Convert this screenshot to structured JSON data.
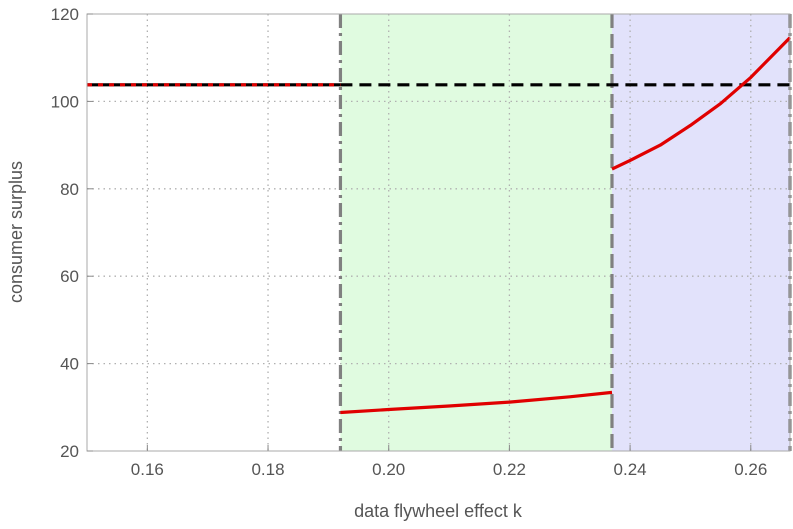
{
  "chart_data": {
    "type": "line",
    "title": "",
    "xlabel": "data flywheel effect k",
    "ylabel": "consumer surplus",
    "xlim": [
      0.15,
      0.2665
    ],
    "ylim": [
      20,
      120
    ],
    "xticks": [
      0.16,
      0.18,
      0.2,
      0.22,
      0.24,
      0.26
    ],
    "xtick_labels": [
      "0.16",
      "0.18",
      "0.20",
      "0.22",
      "0.24",
      "0.26"
    ],
    "yticks": [
      20,
      40,
      60,
      80,
      100,
      120
    ],
    "ytick_labels": [
      "20",
      "40",
      "60",
      "80",
      "100",
      "120"
    ],
    "grid": true,
    "legend": "none",
    "regions": [
      {
        "x_start": 0.192,
        "x_end": 0.237,
        "color": "#e0fbe0"
      },
      {
        "x_start": 0.237,
        "x_end": 0.2665,
        "color": "#e2e2fb"
      }
    ],
    "vertical_lines": [
      {
        "x": 0.192,
        "style": "dash-dot",
        "color": "#808080"
      },
      {
        "x": 0.237,
        "style": "dashed",
        "color": "#808080"
      },
      {
        "x": 0.2665,
        "style": "dash-dot",
        "color": "#808080"
      }
    ],
    "series": [
      {
        "color": "#000000",
        "style": "solid-then-dashed",
        "segments": [
          {
            "style": "solid",
            "points": [
              [
                0.15,
                103.8
              ],
              [
                0.192,
                103.8
              ]
            ]
          },
          {
            "style": "dashed",
            "points": [
              [
                0.192,
                103.8
              ],
              [
                0.2665,
                103.8
              ]
            ]
          }
        ]
      },
      {
        "color": "#e00000",
        "segments": [
          {
            "style": "dotted",
            "points": [
              [
                0.15,
                103.8
              ],
              [
                0.192,
                103.8
              ]
            ]
          },
          {
            "style": "solid",
            "points": [
              [
                0.192,
                28.8
              ],
              [
                0.2,
                29.5
              ],
              [
                0.21,
                30.3
              ],
              [
                0.22,
                31.2
              ],
              [
                0.23,
                32.4
              ],
              [
                0.237,
                33.4
              ]
            ]
          },
          {
            "style": "solid",
            "points": [
              [
                0.237,
                84.5
              ],
              [
                0.24,
                86.5
              ],
              [
                0.245,
                90.0
              ],
              [
                0.25,
                94.5
              ],
              [
                0.255,
                99.5
              ],
              [
                0.26,
                105.5
              ],
              [
                0.2665,
                114.6
              ]
            ]
          }
        ]
      }
    ]
  }
}
